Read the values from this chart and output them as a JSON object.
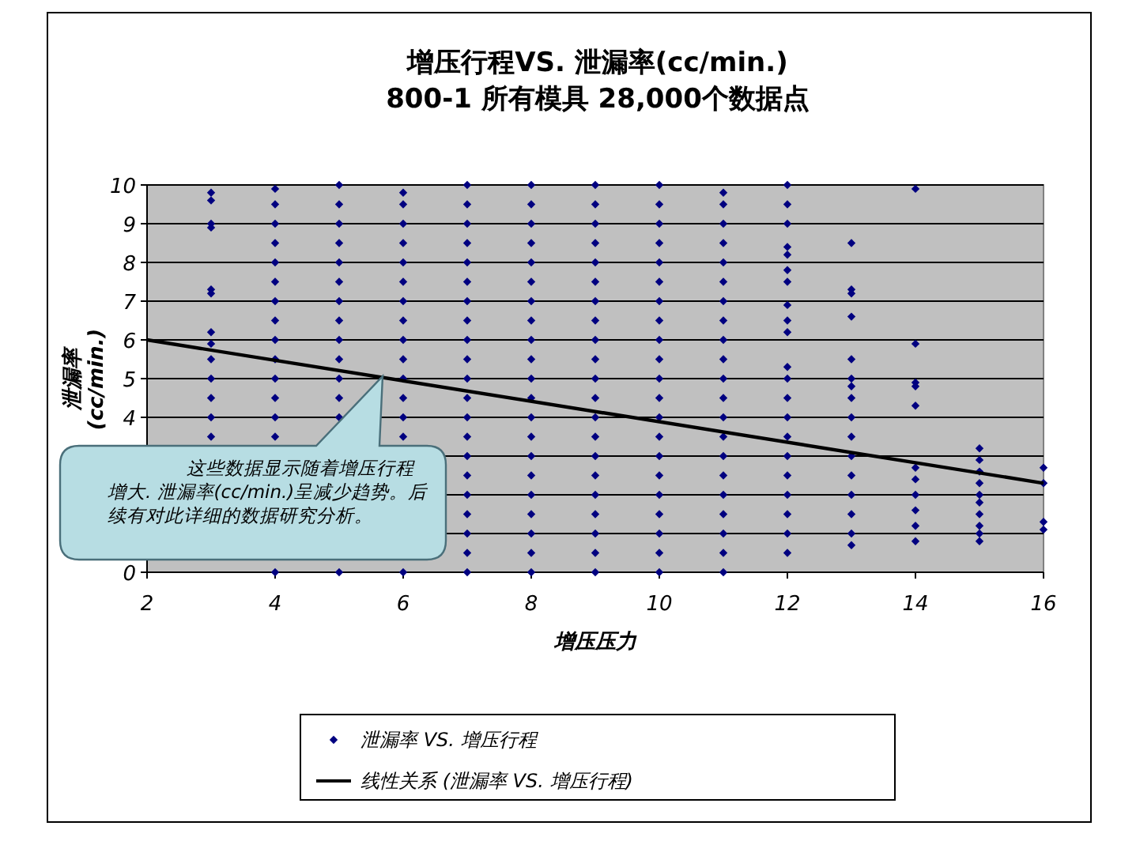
{
  "chart_data": {
    "type": "scatter",
    "title": "增压行程VS. 泄漏率(cc/min.)",
    "subtitle": "800-1 所有模具 28,000个数据点",
    "xlabel": "增压压力",
    "ylabel": "泄漏率 (cc/min.)",
    "xlim": [
      2,
      16
    ],
    "xticks": [
      2,
      4,
      6,
      8,
      10,
      12,
      14,
      16
    ],
    "ylim": [
      0,
      10
    ],
    "yticks": [
      0,
      {
        "value": 1,
        "label": null
      },
      {
        "value": 2,
        "label": null
      },
      {
        "value": 3,
        "label": null
      },
      4,
      5,
      6,
      7,
      8,
      9,
      10
    ],
    "grid": "y",
    "legend": "bottom",
    "annotations": [
      "这些数据显示随着增压行程增大. 泄漏率(cc/min.)呈减少趋势。后续有对此详细的数据研究分析。"
    ],
    "series": [
      {
        "name": "泄漏率 VS. 增压行程",
        "marker": "diamond",
        "color": "#000080",
        "x": [
          3,
          3,
          3,
          3,
          3,
          3,
          3,
          3,
          3,
          3,
          3,
          3,
          3,
          4,
          4,
          4,
          4,
          4,
          4,
          4,
          4,
          4,
          4,
          4,
          4,
          4,
          4,
          4,
          5,
          5,
          5,
          5,
          5,
          5,
          5,
          5,
          5,
          5,
          5,
          5,
          5,
          5,
          6,
          6,
          6,
          6,
          6,
          6,
          6,
          6,
          6,
          6,
          6,
          6,
          6,
          6,
          6,
          7,
          7,
          7,
          7,
          7,
          7,
          7,
          7,
          7,
          7,
          7,
          7,
          7,
          7,
          7,
          7,
          7,
          7,
          7,
          7,
          7,
          8,
          8,
          8,
          8,
          8,
          8,
          8,
          8,
          8,
          8,
          8,
          8,
          8,
          8,
          8,
          8,
          8,
          8,
          8,
          8,
          8,
          9,
          9,
          9,
          9,
          9,
          9,
          9,
          9,
          9,
          9,
          9,
          9,
          9,
          9,
          9,
          9,
          9,
          9,
          9,
          9,
          9,
          10,
          10,
          10,
          10,
          10,
          10,
          10,
          10,
          10,
          10,
          10,
          10,
          10,
          10,
          10,
          10,
          10,
          10,
          10,
          10,
          10,
          11,
          11,
          11,
          11,
          11,
          11,
          11,
          11,
          11,
          11,
          11,
          11,
          11,
          11,
          11,
          11,
          11,
          11,
          11,
          11,
          11,
          12,
          12,
          12,
          12,
          12,
          12,
          12,
          12,
          12,
          12,
          12,
          12,
          12,
          12,
          12,
          12,
          12,
          12,
          12,
          12,
          12,
          13,
          13,
          13,
          13,
          13,
          13,
          13,
          13,
          13,
          13,
          13,
          13,
          13,
          13,
          13,
          13,
          14,
          14,
          14,
          14,
          14,
          14,
          14,
          14,
          14,
          14,
          14,
          15,
          15,
          15,
          15,
          15,
          15,
          15,
          15,
          15,
          15,
          16,
          16,
          16,
          16
        ],
        "values": [
          9.8,
          9.6,
          9.0,
          8.9,
          7.3,
          7.2,
          6.2,
          5.9,
          5.5,
          5.0,
          4.5,
          4.0,
          3.5,
          0,
          3.5,
          4,
          4.5,
          5,
          5.5,
          6,
          6.5,
          7,
          7.5,
          8,
          8.5,
          9,
          9.5,
          9.9,
          0,
          4,
          4.5,
          5,
          5.5,
          6,
          6.5,
          7,
          7.5,
          8,
          8.5,
          9,
          9.5,
          10,
          0,
          3.5,
          4,
          4.5,
          5,
          5.5,
          6,
          6.5,
          7,
          7.5,
          8,
          8.5,
          9,
          9.5,
          9.8,
          0,
          0.5,
          1,
          1.5,
          2,
          2.5,
          3,
          3.5,
          4,
          4.5,
          5,
          5.5,
          6,
          6.5,
          7,
          7.5,
          8,
          8.5,
          9,
          9.5,
          10,
          0,
          0.5,
          1,
          1.5,
          2,
          2.5,
          3,
          3.5,
          4,
          4.5,
          5,
          5.5,
          6,
          6.5,
          7,
          7.5,
          8,
          8.5,
          9,
          9.5,
          10,
          0,
          0.5,
          1,
          1.5,
          2,
          2.5,
          3,
          3.5,
          4,
          4.5,
          5,
          5.5,
          6,
          6.5,
          7,
          7.5,
          8,
          8.5,
          9,
          9.5,
          10,
          0,
          0.5,
          1,
          1.5,
          2,
          2.5,
          3,
          3.5,
          4,
          4.5,
          5,
          5.5,
          6,
          6.5,
          7,
          7.5,
          8,
          8.5,
          9,
          9.5,
          10,
          0,
          0.5,
          1,
          1.5,
          2,
          2.5,
          3,
          3.5,
          4,
          4.5,
          5,
          5.5,
          6,
          6.5,
          7,
          7.5,
          8,
          8.5,
          9,
          9.5,
          9.8,
          0.5,
          1,
          1.5,
          2,
          2.5,
          3,
          3.5,
          4,
          4.5,
          5,
          5.3,
          6.2,
          6.5,
          6.9,
          7.5,
          7.8,
          8.2,
          8.4,
          9.0,
          9.5,
          10,
          0.7,
          1,
          1.5,
          2,
          2.5,
          3,
          3.5,
          4,
          4.5,
          4.8,
          5.0,
          5.5,
          6.6,
          7.2,
          7.3,
          8.5,
          0.8,
          1.2,
          1.6,
          2.0,
          2.4,
          2.7,
          4.3,
          4.8,
          4.9,
          5.9,
          9.9,
          0.8,
          1.0,
          1.2,
          1.5,
          1.8,
          2.0,
          2.3,
          2.6,
          2.9,
          3.2,
          1.1,
          1.3,
          2.3,
          2.7
        ]
      },
      {
        "name": "线性关系 (泄漏率 VS. 增压行程)",
        "type": "line",
        "color": "#000000",
        "x": [
          2,
          16
        ],
        "values": [
          6.0,
          2.3
        ]
      }
    ]
  }
}
